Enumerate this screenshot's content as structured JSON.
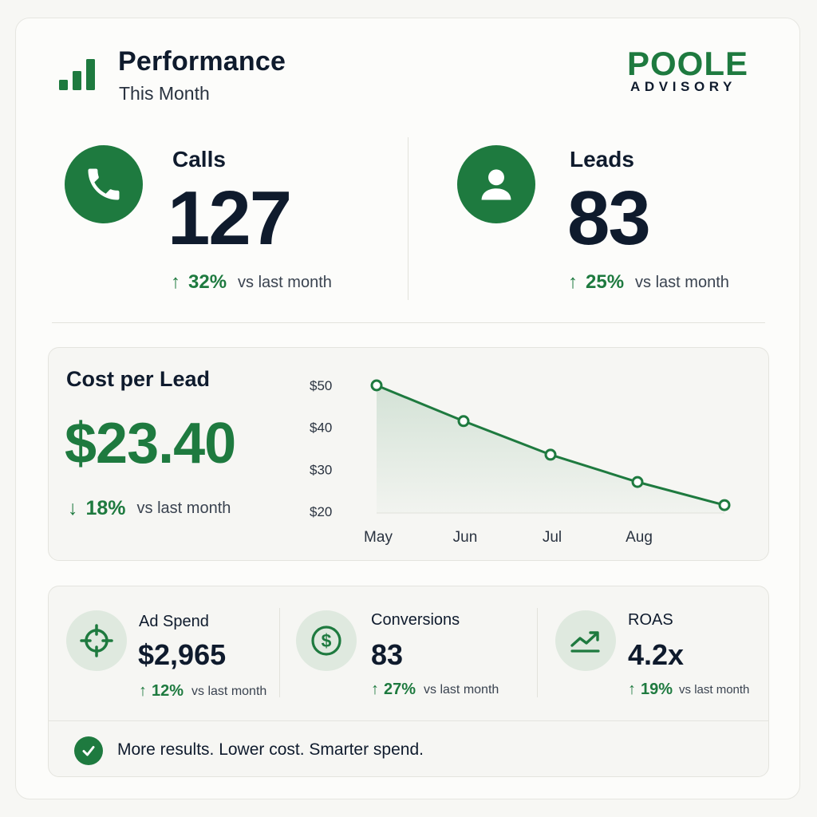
{
  "header": {
    "title": "Performance",
    "subtitle": "This Month",
    "icon": "bar-chart-icon"
  },
  "brand": {
    "name": "POOLE",
    "tagline": "ADVISORY"
  },
  "kpis": [
    {
      "label": "Calls",
      "value": "127",
      "direction": "up",
      "arrow": "↑",
      "change": "32%",
      "comparison": "vs last month",
      "icon": "phone-icon"
    },
    {
      "label": "Leads",
      "value": "83",
      "direction": "up",
      "arrow": "↑",
      "change": "25%",
      "comparison": "vs last month",
      "icon": "user-icon"
    }
  ],
  "cost_per_lead": {
    "label": "Cost per Lead",
    "value": "$23.40",
    "direction": "down",
    "arrow": "↓",
    "change": "18%",
    "comparison": "vs last month"
  },
  "chart_data": {
    "type": "line",
    "x": [
      "May",
      "Jun",
      "Jul",
      "Aug",
      ""
    ],
    "x_tick_labels": [
      "May",
      "Jun",
      "Jul",
      "Aug"
    ],
    "series": [
      {
        "values": [
          50,
          41.5,
          33.5,
          27,
          21.5
        ]
      }
    ],
    "y_ticks": [
      "$50",
      "$40",
      "$30",
      "$20"
    ],
    "ylim": [
      20,
      50
    ],
    "area_fill": true,
    "grid": false,
    "color": "#1e7a3f"
  },
  "stats": [
    {
      "label": "Ad Spend",
      "value": "$2,965",
      "arrow": "↑",
      "change": "12%",
      "comparison": "vs last month",
      "icon": "target-icon"
    },
    {
      "label": "Conversions",
      "value": "83",
      "arrow": "↑",
      "change": "27%",
      "comparison": "vs last month",
      "icon": "dollar-icon"
    },
    {
      "label": "ROAS",
      "value": "4.2x",
      "arrow": "↑",
      "change": "19%",
      "comparison": "vs last month",
      "icon": "trend-up-icon"
    }
  ],
  "footer": {
    "text": "More results. Lower cost. Smarter spend.",
    "icon": "check-circle-icon"
  },
  "colors": {
    "accent": "#1e7a3f",
    "text": "#0f1b2d",
    "soft_green": "#dfe9df"
  }
}
